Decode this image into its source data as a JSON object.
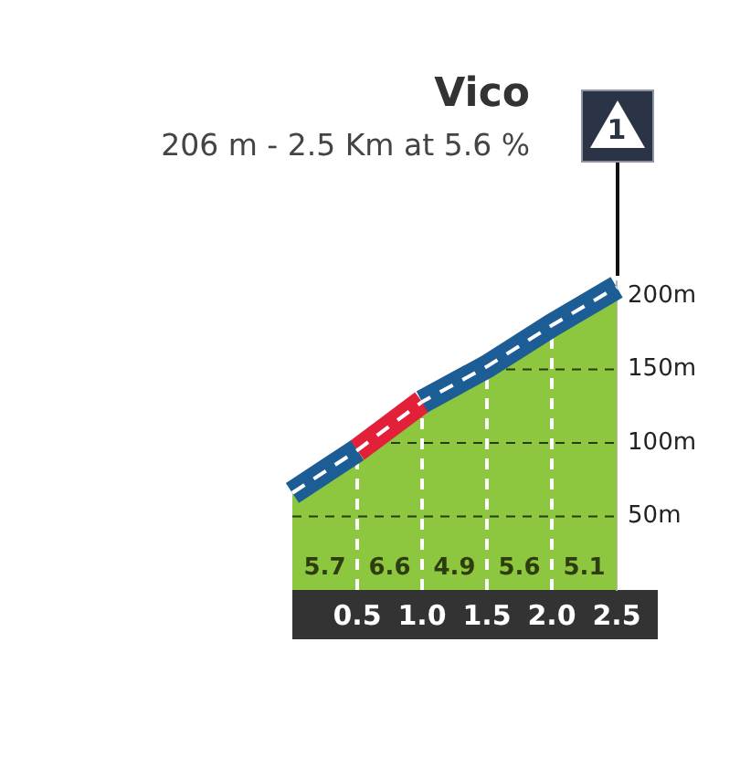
{
  "chart_data": {
    "type": "area",
    "title": "Vico",
    "subtitle": "206 m - 2.5 Km at 5.6 %",
    "x": [
      0,
      0.5,
      1,
      1.5,
      2,
      2.5
    ],
    "series": [
      {
        "color": "#8dc63f",
        "values": [
          66,
          95,
          128,
          152,
          180,
          206
        ]
      },
      {
        "type": "line",
        "color": "#1d5d96",
        "x": [
          0,
          0.5,
          0.75,
          1,
          1.5,
          2,
          2.5
        ],
        "values": [
          66,
          95,
          null,
          128,
          152,
          180,
          206
        ]
      },
      {
        "type": "line",
        "color": "#e3203a",
        "x": [
          0.5,
          1
        ],
        "values": [
          95,
          128
        ]
      }
    ],
    "xlim": [
      0,
      2.5
    ],
    "xticks": [
      0.5,
      {
        "value": 1,
        "label": "1.0"
      },
      1.5,
      {
        "value": 2,
        "label": "2.0"
      },
      2.5
    ],
    "ylim": [
      0,
      210
    ],
    "yticks": [
      {
        "value": 50,
        "label": "50m"
      },
      {
        "value": 100,
        "label": "100m"
      },
      {
        "value": 150,
        "label": "150m"
      },
      {
        "value": 200,
        "label": "200m"
      }
    ],
    "grid": true,
    "annotations": [
      "5.7",
      "6.6",
      "4.9",
      "5.6",
      "5.1",
      "1"
    ]
  }
}
